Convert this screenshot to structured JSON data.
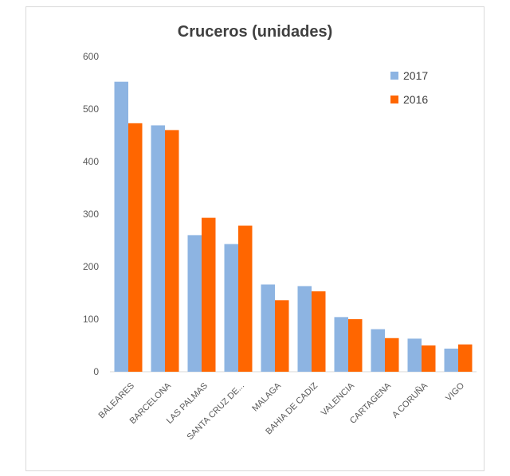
{
  "chart_data": {
    "type": "bar",
    "title": "Cruceros (unidades)",
    "xlabel": "",
    "ylabel": "",
    "ylim": [
      0,
      600
    ],
    "yticks": [
      0,
      100,
      200,
      300,
      400,
      500,
      600
    ],
    "grid": false,
    "legend_position": "top-right",
    "categories": [
      "BALEARES",
      "BARCELONA",
      "LAS PALMAS",
      "SANTA CRUZ DE...",
      "MALAGA",
      "BAHIA DE CADIZ",
      "VALENCIA",
      "CARTAGENA",
      "A CORUÑA",
      "VIGO"
    ],
    "series": [
      {
        "name": "2017",
        "color": "#8db4e2",
        "values": [
          552,
          469,
          260,
          243,
          166,
          163,
          104,
          81,
          63,
          44
        ]
      },
      {
        "name": "2016",
        "color": "#ff6600",
        "values": [
          473,
          460,
          293,
          278,
          136,
          153,
          100,
          64,
          50,
          52
        ]
      }
    ]
  }
}
